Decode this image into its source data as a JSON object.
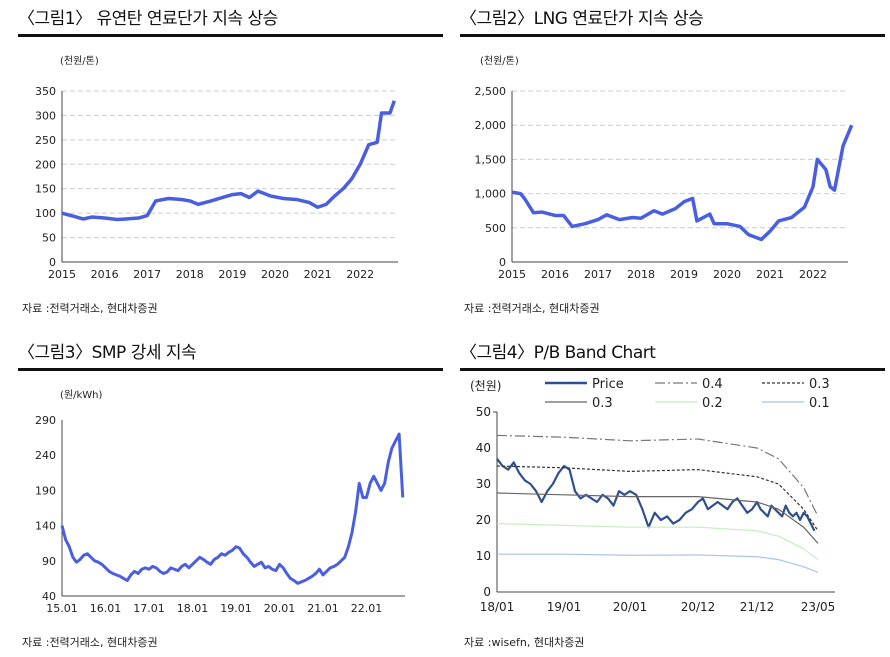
{
  "panels": [
    {
      "title": "〈그림1〉 유연탄 연료단가 지속 상승",
      "source": "자료 :전력거래소, 현대차증권"
    },
    {
      "title": "〈그림2〉LNG 연료단가 지속 상승",
      "source": "자료 :전력거래소, 현대차증권"
    },
    {
      "title": "〈그림3〉SMP 강세 지속",
      "source": "자료 :전력거래소, 현대차증권"
    },
    {
      "title": "〈그림4〉P/B Band Chart",
      "source": "자료 :wisefn, 현대차증권"
    }
  ],
  "chart_data": [
    {
      "type": "line",
      "unit": "(천원/톤)",
      "ylim": [
        0,
        350
      ],
      "yticks": [
        0,
        50,
        100,
        150,
        200,
        250,
        300,
        350
      ],
      "xticks": [
        "2015",
        "2016",
        "2017",
        "2018",
        "2019",
        "2020",
        "2021",
        "2022"
      ],
      "grid": true,
      "color": "#4a5fe0",
      "series": [
        {
          "x": [
            2015.0,
            2015.3,
            2015.5,
            2015.7,
            2016.0,
            2016.3,
            2016.5,
            2016.8,
            2017.0,
            2017.2,
            2017.5,
            2017.8,
            2018.0,
            2018.2,
            2018.5,
            2018.8,
            2019.0,
            2019.2,
            2019.4,
            2019.6,
            2019.9,
            2020.2,
            2020.5,
            2020.8,
            2021.0,
            2021.2,
            2021.4,
            2021.6,
            2021.8,
            2022.0,
            2022.2,
            2022.4,
            2022.5,
            2022.7,
            2022.8
          ],
          "y": [
            100,
            93,
            88,
            92,
            90,
            87,
            88,
            90,
            95,
            125,
            130,
            128,
            125,
            118,
            125,
            133,
            138,
            140,
            132,
            145,
            135,
            130,
            128,
            122,
            112,
            118,
            135,
            150,
            170,
            200,
            240,
            245,
            305,
            305,
            330
          ]
        }
      ]
    },
    {
      "type": "line",
      "unit": "(천원/톤)",
      "ylim": [
        0,
        2500
      ],
      "yticks": [
        "0",
        "500",
        "1,000",
        "1,500",
        "2,000",
        "2,500"
      ],
      "xticks": [
        "2015",
        "2016",
        "2017",
        "2018",
        "2019",
        "2020",
        "2021",
        "2022"
      ],
      "grid": true,
      "color": "#4a5fe0",
      "series": [
        {
          "x": [
            2015.0,
            2015.2,
            2015.3,
            2015.5,
            2015.7,
            2016.0,
            2016.2,
            2016.4,
            2016.7,
            2017.0,
            2017.2,
            2017.5,
            2017.8,
            2018.0,
            2018.3,
            2018.5,
            2018.8,
            2019.0,
            2019.2,
            2019.3,
            2019.6,
            2019.7,
            2020.0,
            2020.3,
            2020.5,
            2020.8,
            2021.0,
            2021.2,
            2021.5,
            2021.8,
            2022.0,
            2022.1,
            2022.3,
            2022.4,
            2022.5,
            2022.7,
            2022.9
          ],
          "y": [
            1020,
            1000,
            920,
            720,
            730,
            680,
            680,
            520,
            560,
            620,
            690,
            620,
            650,
            640,
            750,
            700,
            780,
            880,
            930,
            600,
            700,
            560,
            560,
            520,
            400,
            330,
            450,
            600,
            650,
            800,
            1100,
            1500,
            1350,
            1100,
            1050,
            1700,
            2000
          ]
        }
      ]
    },
    {
      "type": "line",
      "unit": "(원/kWh)",
      "ylim": [
        40,
        290
      ],
      "yticks": [
        40,
        90,
        140,
        190,
        240,
        290
      ],
      "xticks": [
        "15.01",
        "16.01",
        "17.01",
        "18.01",
        "19.01",
        "20.01",
        "21.01",
        "22.01"
      ],
      "grid": false,
      "color": "#4a5fe0",
      "series": [
        {
          "start": "15.01",
          "freq": "monthly",
          "y": [
            140,
            120,
            110,
            95,
            88,
            92,
            98,
            100,
            95,
            90,
            88,
            85,
            80,
            75,
            72,
            70,
            68,
            65,
            62,
            70,
            75,
            72,
            78,
            80,
            78,
            82,
            80,
            75,
            72,
            74,
            80,
            78,
            76,
            82,
            85,
            80,
            85,
            90,
            95,
            92,
            88,
            85,
            92,
            95,
            100,
            98,
            102,
            105,
            110,
            108,
            100,
            95,
            88,
            82,
            85,
            88,
            80,
            82,
            78,
            76,
            85,
            80,
            72,
            65,
            62,
            58,
            60,
            62,
            65,
            68,
            72,
            78,
            70,
            75,
            80,
            82,
            85,
            90,
            95,
            110,
            130,
            160,
            200,
            180,
            180,
            200,
            210,
            200,
            190,
            200,
            230,
            250,
            260,
            270,
            180
          ]
        }
      ]
    },
    {
      "type": "line",
      "unit": "(천원)",
      "ylim": [
        0,
        50
      ],
      "yticks": [
        0,
        10,
        20,
        30,
        40,
        50
      ],
      "xticks": [
        "18/01",
        "19/01",
        "20/01",
        "20/12",
        "21/12",
        "23/05"
      ],
      "grid": false,
      "legend": [
        "Price",
        "0.4",
        "0.3",
        "0.3",
        "0.2",
        "0.1"
      ],
      "series": [
        {
          "name": "Price",
          "color": "#2f4f8f",
          "style": "solid",
          "start": "18/01",
          "freq": "monthly",
          "y": [
            37,
            35,
            34,
            36,
            33,
            31,
            30,
            28,
            25,
            28,
            30,
            33,
            35,
            34,
            28,
            26,
            27,
            26,
            25,
            27,
            26,
            24,
            28,
            27,
            28,
            27,
            23,
            18,
            22,
            20,
            21,
            19,
            20,
            22,
            23,
            25,
            26,
            23,
            24,
            25,
            24,
            23,
            25,
            26,
            24,
            22,
            23,
            25,
            23,
            22,
            21,
            24,
            23,
            22,
            21,
            24,
            22,
            21,
            22,
            20,
            22,
            21,
            19,
            17
          ]
        },
        {
          "name": "0.4",
          "color": "#777777",
          "style": "dashdot",
          "dates": [
            "18/01",
            "19/01",
            "20/01",
            "20/12",
            "21/12",
            "22/06",
            "23/01",
            "23/05"
          ],
          "y": [
            43.5,
            43,
            42,
            42.5,
            40,
            37,
            29,
            21
          ]
        },
        {
          "name": "0.3",
          "color": "#333333",
          "style": "dotted",
          "dates": [
            "18/01",
            "19/01",
            "20/01",
            "20/12",
            "21/12",
            "22/06",
            "23/01",
            "23/05"
          ],
          "y": [
            35,
            34.5,
            33.5,
            34,
            32,
            30,
            23,
            17
          ]
        },
        {
          "name": "0.3",
          "color": "#666666",
          "style": "solid",
          "dates": [
            "18/01",
            "19/01",
            "20/01",
            "20/12",
            "21/12",
            "22/06",
            "23/01",
            "23/05"
          ],
          "y": [
            27.5,
            27,
            26.5,
            26.5,
            25,
            23,
            18,
            13.5
          ]
        },
        {
          "name": "0.2",
          "color": "#c8ecc0",
          "style": "solid",
          "dates": [
            "18/01",
            "19/01",
            "20/01",
            "20/12",
            "21/12",
            "22/06",
            "23/01",
            "23/05"
          ],
          "y": [
            19,
            18.5,
            18,
            18,
            17,
            15.5,
            12,
            9
          ]
        },
        {
          "name": "0.1",
          "color": "#a8c4ec",
          "style": "solid",
          "dates": [
            "18/01",
            "19/01",
            "20/01",
            "20/12",
            "21/12",
            "22/06",
            "23/01",
            "23/05"
          ],
          "y": [
            10.5,
            10.5,
            10.2,
            10.3,
            9.8,
            9,
            7,
            5.5
          ]
        }
      ]
    }
  ]
}
